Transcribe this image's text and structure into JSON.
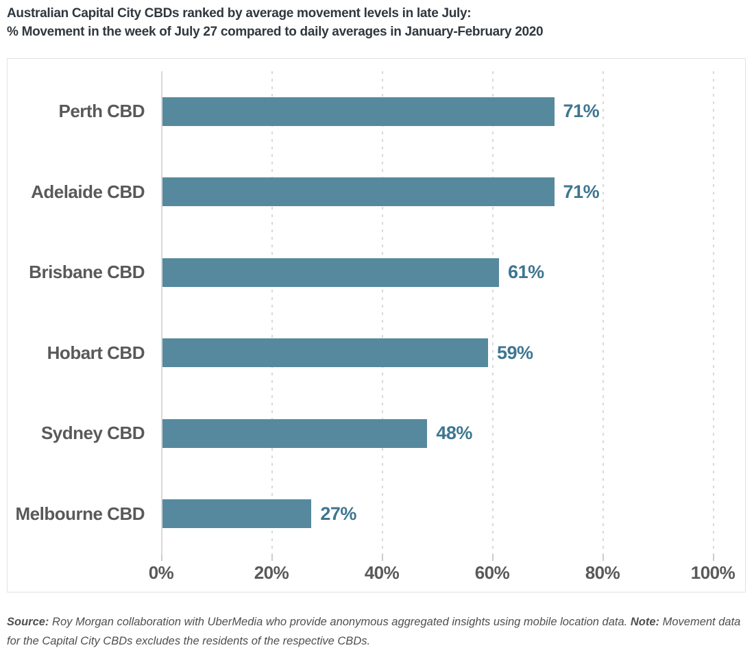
{
  "title": {
    "line1": "Australian Capital City CBDs ranked by average movement levels in late July:",
    "line2": "% Movement in the week of July 27 compared to daily averages in January-February 2020"
  },
  "chart_data": {
    "type": "bar",
    "orientation": "horizontal",
    "title": "Australian Capital City CBDs ranked by average movement levels in late July: % Movement in the week of July 27 compared to daily averages in January-February 2020",
    "categories": [
      "Perth CBD",
      "Adelaide CBD",
      "Brisbane CBD",
      "Hobart CBD",
      "Sydney CBD",
      "Melbourne CBD"
    ],
    "values": [
      71,
      71,
      61,
      59,
      48,
      27
    ],
    "value_labels": [
      "71%",
      "71%",
      "61%",
      "59%",
      "48%",
      "27%"
    ],
    "x_ticks": [
      "0%",
      "20%",
      "40%",
      "60%",
      "80%",
      "100%"
    ],
    "x_range": [
      0,
      100
    ],
    "xlabel": "",
    "ylabel": "",
    "grid": "dashed vertical gridlines at 20% intervals, solid axis line at 0%",
    "legend": "none",
    "colors": {
      "bar": "#56899d",
      "value_label": "#3e7690",
      "category_label": "#595959",
      "axis_label": "#595959",
      "title_text": "#30373e",
      "gridline": "#d9d9d9",
      "box_border": "#e2e2e2",
      "background": "#ffffff"
    }
  },
  "footnote": {
    "source_label": "Source:",
    "source_text": " Roy Morgan collaboration with UberMedia who provide anonymous aggregated insights using mobile location data. ",
    "note_label": "Note:",
    "note_text": " Movement data for the Capital City CBDs excludes the residents of the respective CBDs."
  }
}
